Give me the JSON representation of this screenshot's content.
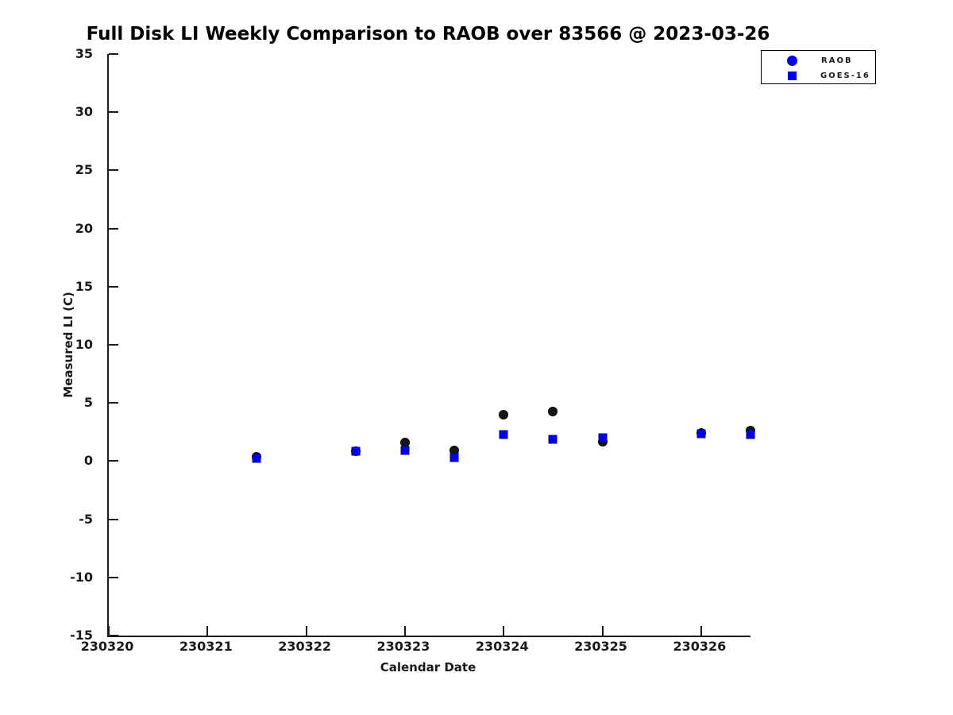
{
  "chart_data": {
    "type": "scatter",
    "title": "Full Disk LI Weekly Comparison to RAOB over 83566 @ 2023-03-26",
    "xlabel": "Calendar Date",
    "ylabel": "Measured LI (C)",
    "xlim": [
      230320,
      230326.5
    ],
    "ylim": [
      -15,
      35
    ],
    "x_ticks": [
      230320,
      230321,
      230322,
      230323,
      230324,
      230325,
      230326
    ],
    "y_ticks": [
      35,
      30,
      25,
      20,
      15,
      10,
      5,
      0,
      -5,
      -10,
      -15
    ],
    "grid": false,
    "legend_position": "top-right",
    "series": [
      {
        "name": "RAOB",
        "marker": "circle",
        "color": "#151515",
        "legend_color": "#0000ee",
        "points": [
          [
            230321.5,
            0.4
          ],
          [
            230322.5,
            0.85
          ],
          [
            230323.0,
            1.6
          ],
          [
            230323.5,
            0.9
          ],
          [
            230324.0,
            4.0
          ],
          [
            230324.5,
            4.25
          ],
          [
            230325.0,
            1.7
          ],
          [
            230326.0,
            2.45
          ],
          [
            230326.5,
            2.6
          ]
        ]
      },
      {
        "name": "GOES-16",
        "marker": "square",
        "color": "#0000ee",
        "legend_color": "#0000ee",
        "points": [
          [
            230321.5,
            0.2
          ],
          [
            230322.5,
            0.85
          ],
          [
            230323.0,
            0.9
          ],
          [
            230323.5,
            0.3
          ],
          [
            230324.0,
            2.25
          ],
          [
            230324.5,
            1.9
          ],
          [
            230325.0,
            2.0
          ],
          [
            230326.0,
            2.35
          ],
          [
            230326.5,
            2.3
          ]
        ]
      }
    ]
  }
}
